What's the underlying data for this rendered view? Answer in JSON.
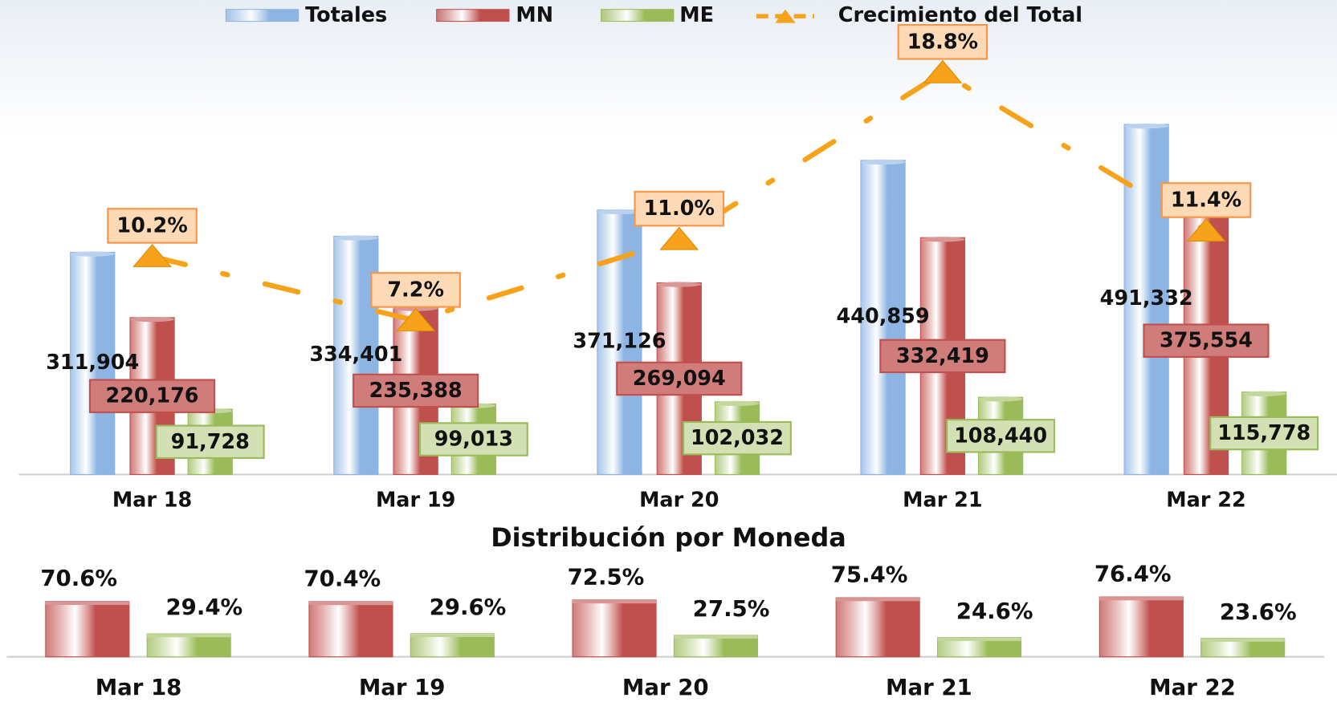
{
  "chart_data": [
    {
      "type": "bar",
      "categories": [
        "Mar 18",
        "Mar 19",
        "Mar 20",
        "Mar 21",
        "Mar 22"
      ],
      "series": [
        {
          "name": "Totales",
          "color": "#8db4e2",
          "values": [
            311904,
            334401,
            371126,
            440859,
            491332
          ],
          "value_labels": [
            "311,904",
            "334,401",
            "371,126",
            "440,859",
            "491,332"
          ]
        },
        {
          "name": "MN",
          "color": "#c0504d",
          "values": [
            220176,
            235388,
            269094,
            332419,
            375554
          ],
          "value_labels": [
            "220,176",
            "235,388",
            "269,094",
            "332,419",
            "375,554"
          ]
        },
        {
          "name": "ME",
          "color": "#9bbb59",
          "values": [
            91728,
            99013,
            102032,
            108440,
            115778
          ],
          "value_labels": [
            "91,728",
            "99,013",
            "102,032",
            "108,440",
            "115,778"
          ]
        },
        {
          "name": "Crecimiento del Total",
          "type": "line",
          "axis": "y2",
          "color": "#f7a21b",
          "values": [
            10.2,
            7.2,
            11.0,
            18.8,
            11.4
          ],
          "value_labels": [
            "10.2%",
            "7.2%",
            "11.0%",
            "18.8%",
            "11.4%"
          ]
        }
      ],
      "ylim": [
        0,
        630000
      ],
      "y2lim": [
        0,
        21
      ]
    },
    {
      "type": "bar",
      "title": "Distribución por Moneda",
      "categories": [
        "Mar 18",
        "Mar 19",
        "Mar 20",
        "Mar 21",
        "Mar 22"
      ],
      "series": [
        {
          "name": "MN",
          "color": "#c0504d",
          "values": [
            70.6,
            70.4,
            72.5,
            75.4,
            76.4
          ],
          "value_labels": [
            "70.6%",
            "70.4%",
            "72.5%",
            "75.4%",
            "76.4%"
          ]
        },
        {
          "name": "ME",
          "color": "#9bbb59",
          "values": [
            29.4,
            29.6,
            27.5,
            24.6,
            23.6
          ],
          "value_labels": [
            "29.4%",
            "29.6%",
            "27.5%",
            "24.6%",
            "23.6%"
          ]
        }
      ],
      "ylim": [
        0,
        100
      ]
    }
  ]
}
